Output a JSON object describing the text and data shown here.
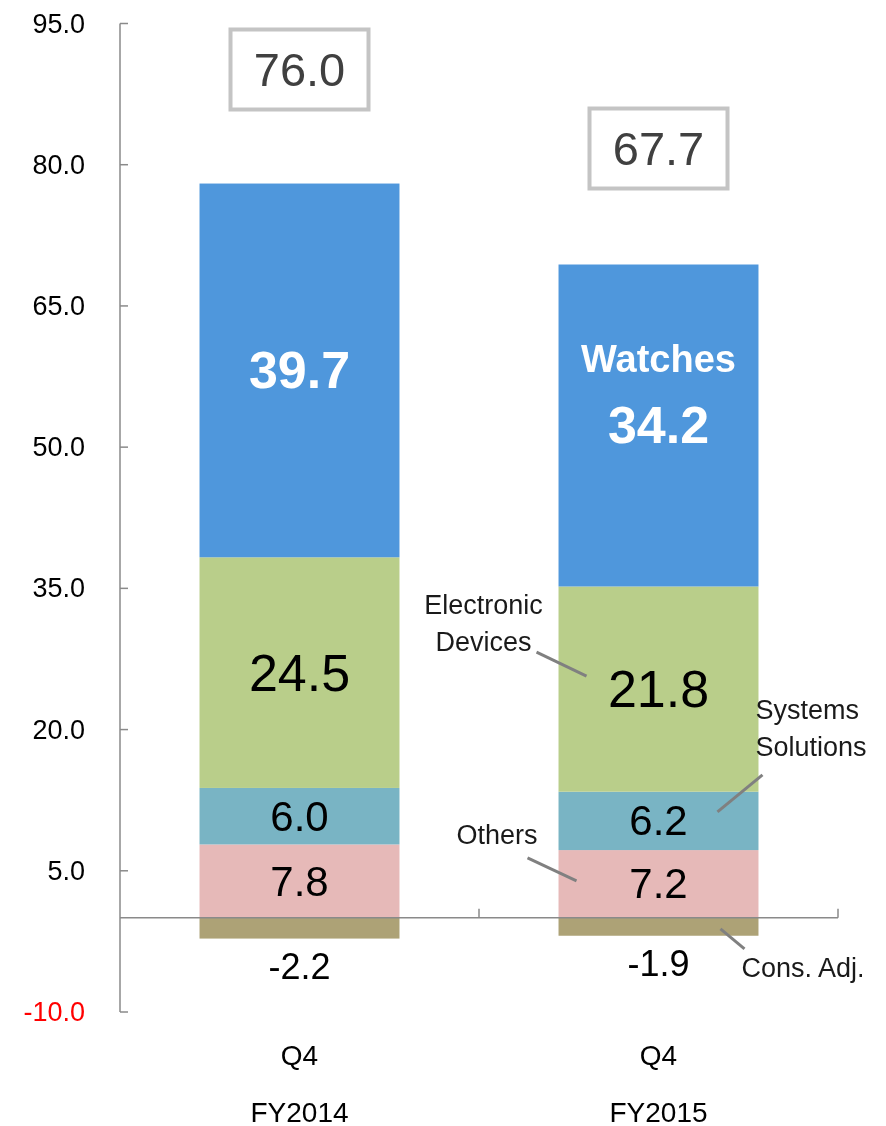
{
  "chart_data": {
    "type": "bar",
    "stacked": true,
    "categories": [
      "Q4\nFY2014",
      "Q4\nFY2015"
    ],
    "series": [
      {
        "name": "Others",
        "color": "#e6b9b8",
        "values": [
          7.8,
          7.2
        ],
        "value_labels": [
          "7.8",
          "7.2"
        ]
      },
      {
        "name": "Systems Solutions",
        "color": "#79b4c4",
        "values": [
          6.0,
          6.2
        ],
        "value_labels": [
          "6.0",
          "6.2"
        ]
      },
      {
        "name": "Electronic Devices",
        "color": "#b9ce8a",
        "values": [
          24.5,
          21.8
        ],
        "value_labels": [
          "24.5",
          "21.8"
        ]
      },
      {
        "name": "Watches",
        "color": "#4f97dc",
        "values": [
          39.7,
          34.2
        ],
        "value_labels": [
          "39.7",
          "34.2"
        ]
      },
      {
        "name": "Cons. Adj.",
        "color": "#ada276",
        "values": [
          -2.2,
          -1.9
        ],
        "value_labels": [
          "-2.2",
          "-1.9"
        ]
      }
    ],
    "ylim": [
      -10,
      95
    ],
    "yticks": [
      {
        "value": -10,
        "label": "-10.0"
      },
      {
        "value": 5,
        "label": "5.0"
      },
      {
        "value": 20,
        "label": "20.0"
      },
      {
        "value": 35,
        "label": "35.0"
      },
      {
        "value": 50,
        "label": "50.0"
      },
      {
        "value": 65,
        "label": "65.0"
      },
      {
        "value": 80,
        "label": "80.0"
      },
      {
        "value": 95,
        "label": "95.0"
      }
    ],
    "totals": [
      "76.0",
      "67.7"
    ]
  }
}
